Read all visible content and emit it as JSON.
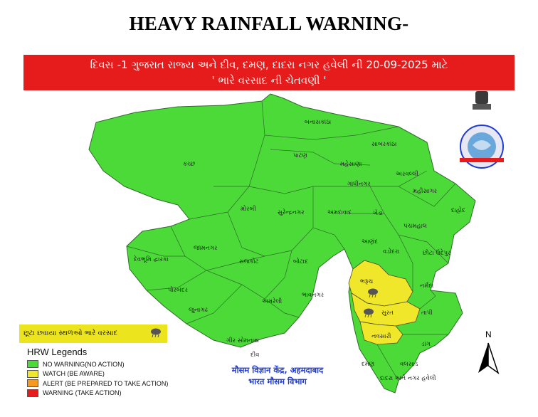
{
  "title": "HEAVY RAINFALL WARNING-",
  "banner": {
    "line1": "દિવસ -1 ગુજરાત રાજ્ય અને દીવ, દમણ, દાદરા નગર હવેલી ની 20-09-2025 માટે",
    "line2": "' ભારે વરસાદ ની ચેતવણી '"
  },
  "colors": {
    "no_warning": "#4cda39",
    "watch": "#f0e62a",
    "alert": "#f59a1f",
    "warning": "#e61c1c",
    "banner": "#e61c1c",
    "text_blue": "#1f3bd1"
  },
  "districts": [
    "બનાસકાંઠા",
    "કચ્છ",
    "પાટણ",
    "સાબરકાંઠા",
    "મહેસાણા",
    "અરવલ્લી",
    "ગાંધીનગર",
    "મહીસાગર",
    "દાહોદ",
    "મોરબી",
    "સુરેન્દ્રનગર",
    "અમદાવાદ",
    "ખેડા",
    "પંચમહાલ",
    "આણંદ",
    "વડોદરા",
    "છોટા ઉદેપુર",
    "જામનગર",
    "દેવભૂમિ દ્વારકા",
    "રાજકોટ",
    "બોટાદ",
    "ભરૂચ",
    "નર્મદા",
    "પોરબંદર",
    "અમરેલી",
    "ભાવનગર",
    "સુરત",
    "તાપી",
    "જુનાગઢ",
    "ગીર સોમનાથ",
    "નવસારી",
    "ડાંગ",
    "વલસાડ",
    "દીવ",
    "દમણ",
    "દાદરા અને નગર હવેલી"
  ],
  "watch_districts": [
    "ભરૂચ",
    "સુરત",
    "નવસારી"
  ],
  "rain_note": "છૂટા છવાયા સ્થળઓ ભારે વરસાદ",
  "legend": {
    "title": "HRW Legends",
    "items": [
      {
        "label": "NO WARNING(NO ACTION)",
        "color": "#4cda39"
      },
      {
        "label": "WATCH (BE AWARE)",
        "color": "#f0e62a"
      },
      {
        "label": "ALERT (BE PREPARED TO TAKE ACTION)",
        "color": "#f59a1f"
      },
      {
        "label": "WARNING (TAKE ACTION)",
        "color": "#e61c1c"
      }
    ]
  },
  "imd": {
    "line1": "मौसम विज्ञान केंद्र, अहमदाबाद",
    "line2": "भारत मौसम विभाग"
  },
  "north_label": "N",
  "icons": [
    "rain-cloud-icon",
    "north-arrow-icon",
    "imd-emblem-icon"
  ]
}
